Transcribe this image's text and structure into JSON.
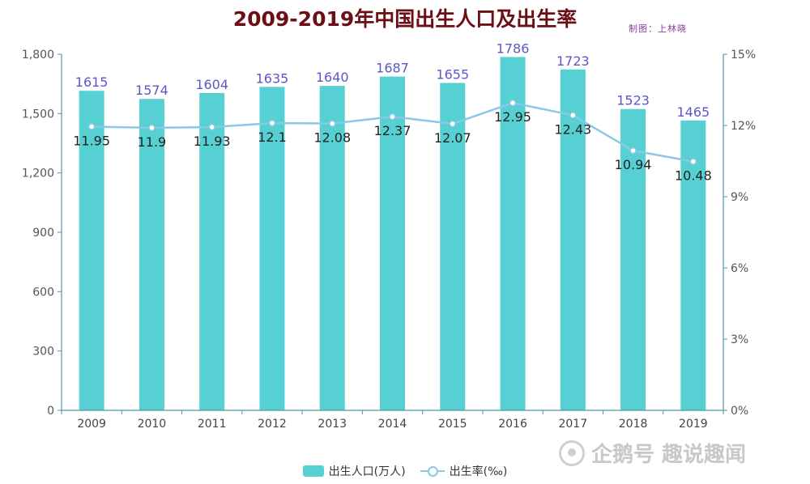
{
  "title": "2009-2019年中国出生人口及出生率",
  "credit": "制图：上林晓",
  "watermark": "企鹅号 趣说趣闻",
  "colors": {
    "bar": "#56d0d3",
    "line": "#8bc8e6",
    "bar_label": "#5b57c8",
    "line_label": "#222222",
    "axis": "#4a9aa0"
  },
  "chart_data": {
    "type": "bar",
    "title": "2009-2019年中国出生人口及出生率",
    "categories": [
      "2009",
      "2010",
      "2011",
      "2012",
      "2013",
      "2014",
      "2015",
      "2016",
      "2017",
      "2018",
      "2019"
    ],
    "series": [
      {
        "name": "出生人口(万人)",
        "type": "bar",
        "axis": "left",
        "values": [
          1615,
          1574,
          1604,
          1635,
          1640,
          1687,
          1655,
          1786,
          1723,
          1523,
          1465
        ]
      },
      {
        "name": "出生率(‰)",
        "type": "line",
        "axis": "right",
        "values": [
          11.95,
          11.9,
          11.93,
          12.1,
          12.08,
          12.37,
          12.07,
          12.95,
          12.43,
          10.94,
          10.48
        ]
      }
    ],
    "y_left": {
      "min": 0,
      "max": 1800,
      "ticks": [
        0,
        300,
        600,
        900,
        1200,
        1500,
        1800
      ],
      "tick_labels": [
        "0",
        "300",
        "600",
        "900",
        "1,200",
        "1,500",
        "1,800"
      ]
    },
    "y_right": {
      "min": 0,
      "max": 15,
      "ticks": [
        0,
        3,
        6,
        9,
        12,
        15
      ],
      "tick_labels": [
        "0%",
        "3%",
        "6%",
        "9%",
        "12%",
        "15%"
      ]
    },
    "legend": [
      "出生人口(万人)",
      "出生率(‰)"
    ],
    "legend_position": "bottom-center"
  }
}
